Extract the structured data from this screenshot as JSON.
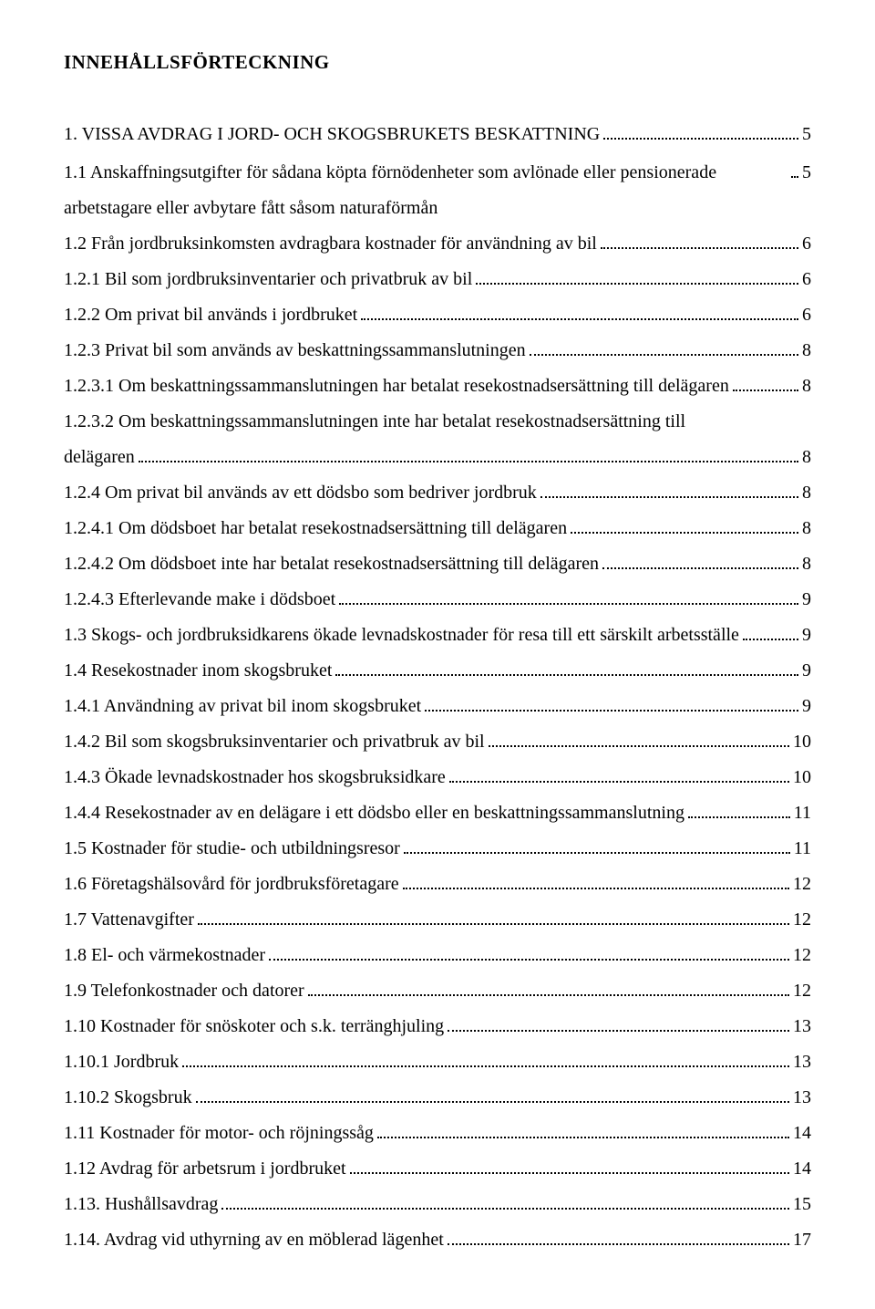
{
  "title": "INNEHÅLLSFÖRTECKNING",
  "section": "1. VISSA AVDRAG I JORD- OCH SKOGSBRUKETS BESKATTNING",
  "section_page": "5",
  "toc": [
    {
      "label": "1.1 Anskaffningsutgifter för sådana köpta förnödenheter som avlönade eller pensionerade arbetstagare eller avbytare fått såsom naturaförmån",
      "page": "5"
    },
    {
      "label": "1.2 Från jordbruksinkomsten avdragbara kostnader för användning av bil",
      "page": "6"
    },
    {
      "label": "1.2.1 Bil som jordbruksinventarier och privatbruk av bil",
      "page": "6"
    },
    {
      "label": "1.2.2 Om privat bil används i jordbruket",
      "page": "6"
    },
    {
      "label": "1.2.3 Privat bil som används av beskattningssammanslutningen",
      "page": "8"
    },
    {
      "label": "1.2.3.1 Om beskattningssammanslutningen har betalat resekostnadsersättning till delägaren",
      "page": "8"
    },
    {
      "label": "1.2.3.2 Om beskattningssammanslutningen inte har betalat resekostnadsersättning till delägaren",
      "page": "8"
    },
    {
      "label": "1.2.4 Om privat bil används av ett dödsbo som bedriver jordbruk",
      "page": "8"
    },
    {
      "label": "1.2.4.1 Om dödsboet har betalat resekostnadsersättning till delägaren",
      "page": "8"
    },
    {
      "label": "1.2.4.2 Om dödsboet inte har betalat resekostnadsersättning till delägaren",
      "page": "8"
    },
    {
      "label": "1.2.4.3 Efterlevande make i dödsboet",
      "page": "9"
    },
    {
      "label": "1.3 Skogs- och jordbruksidkarens ökade levnadskostnader för resa till ett särskilt arbetsställe",
      "page": "9"
    },
    {
      "label": "1.4 Resekostnader inom skogsbruket",
      "page": "9"
    },
    {
      "label": "1.4.1 Användning av privat bil inom skogsbruket",
      "page": "9"
    },
    {
      "label": "1.4.2 Bil som skogsbruksinventarier och privatbruk av bil",
      "page": "10"
    },
    {
      "label": "1.4.3 Ökade levnadskostnader hos skogsbruksidkare",
      "page": "10"
    },
    {
      "label": "1.4.4 Resekostnader av en delägare i ett dödsbo eller en beskattningssammanslutning",
      "page": "11"
    },
    {
      "label": "1.5 Kostnader för studie- och utbildningsresor",
      "page": "11"
    },
    {
      "label": "1.6 Företagshälsovård för jordbruksföretagare",
      "page": "12"
    },
    {
      "label": "1.7 Vattenavgifter",
      "page": "12"
    },
    {
      "label": "1.8 El- och värmekostnader",
      "page": "12"
    },
    {
      "label": "1.9 Telefonkostnader och datorer",
      "page": "12"
    },
    {
      "label": "1.10 Kostnader för snöskoter och s.k. terränghjuling",
      "page": "13"
    },
    {
      "label": "1.10.1 Jordbruk",
      "page": "13"
    },
    {
      "label": "1.10.2 Skogsbruk",
      "page": "13"
    },
    {
      "label": "1.11 Kostnader för motor- och röjningssåg",
      "page": "14"
    },
    {
      "label": "1.12 Avdrag för arbetsrum i jordbruket",
      "page": "14"
    },
    {
      "label": "1.13. Hushållsavdrag",
      "page": "15"
    },
    {
      "label": "1.14. Avdrag vid uthyrning av en möblerad lägenhet",
      "page": "17"
    }
  ],
  "wrap_entry_index": 6
}
